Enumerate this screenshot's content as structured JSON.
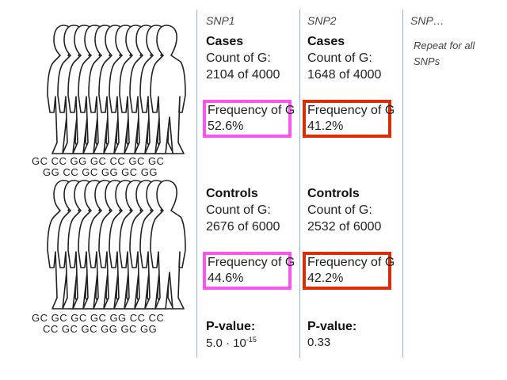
{
  "columns": [
    {
      "header": "SNP1",
      "cases": {
        "group_label": "Cases",
        "count_label": "Count of G:",
        "count_value": "2104 of 4000",
        "freq_label": "Frequency of G",
        "freq_value": "52.6%",
        "box_color": "#ff55ee"
      },
      "controls": {
        "group_label": "Controls",
        "count_label": "Count of G:",
        "count_value": "2676 of 6000",
        "freq_label": "Frequency of G",
        "freq_value": "44.6%",
        "box_color": "#ff55ee"
      },
      "pvalue": {
        "label": "P-value:",
        "mantissa": "5.0 · 10",
        "exponent": "-15"
      }
    },
    {
      "header": "SNP2",
      "cases": {
        "group_label": "Cases",
        "count_label": "Count of G:",
        "count_value": "1648 of 4000",
        "freq_label": "Frequency of G",
        "freq_value": "41.2%",
        "box_color": "#e02a00"
      },
      "controls": {
        "group_label": "Controls",
        "count_label": "Count of G:",
        "count_value": "2532 of 6000",
        "freq_label": "Frequency of G",
        "freq_value": "42.2%",
        "box_color": "#e02a00"
      },
      "pvalue": {
        "label": "P-value:",
        "value": "0.33"
      }
    },
    {
      "header": "SNP…",
      "note_line1": "Repeat for all",
      "note_line2": "SNPs"
    }
  ],
  "genotypes": {
    "cases_row1": "GC  CC  GG  GC  CC  GC  GC",
    "cases_row2": "GG  CC  GC  GG  GC  GG",
    "controls_row1": "GC  GC  GC  GC  GG  CC  CC",
    "controls_row2": "CC  GC  GC  GG  GC  GG"
  },
  "icons": {
    "people": "person-silhouette-icon"
  }
}
